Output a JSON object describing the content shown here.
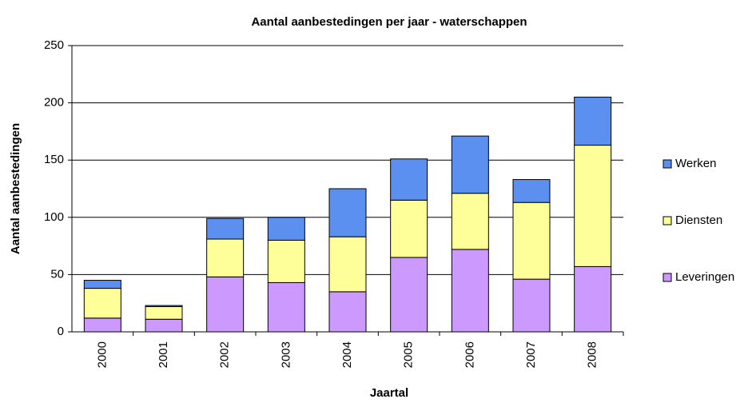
{
  "chart_data": {
    "type": "stacked_bar",
    "title": "Aantal aanbestedingen per jaar - waterschappen",
    "x_label": "Jaartal",
    "y_label": "Aantal aanbestedingen",
    "categories": [
      "2000",
      "2001",
      "2002",
      "2003",
      "2004",
      "2005",
      "2006",
      "2007",
      "2008"
    ],
    "series": [
      {
        "name": "Leveringen",
        "color": "#cc99ff",
        "values": [
          12,
          11,
          48,
          43,
          35,
          65,
          72,
          46,
          57
        ]
      },
      {
        "name": "Diensten",
        "color": "#ffff99",
        "values": [
          26,
          11,
          33,
          37,
          48,
          50,
          49,
          67,
          106
        ]
      },
      {
        "name": "Werken",
        "color": "#5b8ff0",
        "values": [
          7,
          1,
          18,
          20,
          42,
          36,
          50,
          20,
          42
        ]
      }
    ],
    "ylim": [
      0,
      250
    ],
    "yticks": [
      0,
      50,
      100,
      150,
      200,
      250
    ],
    "grid": true,
    "legend": "right"
  }
}
